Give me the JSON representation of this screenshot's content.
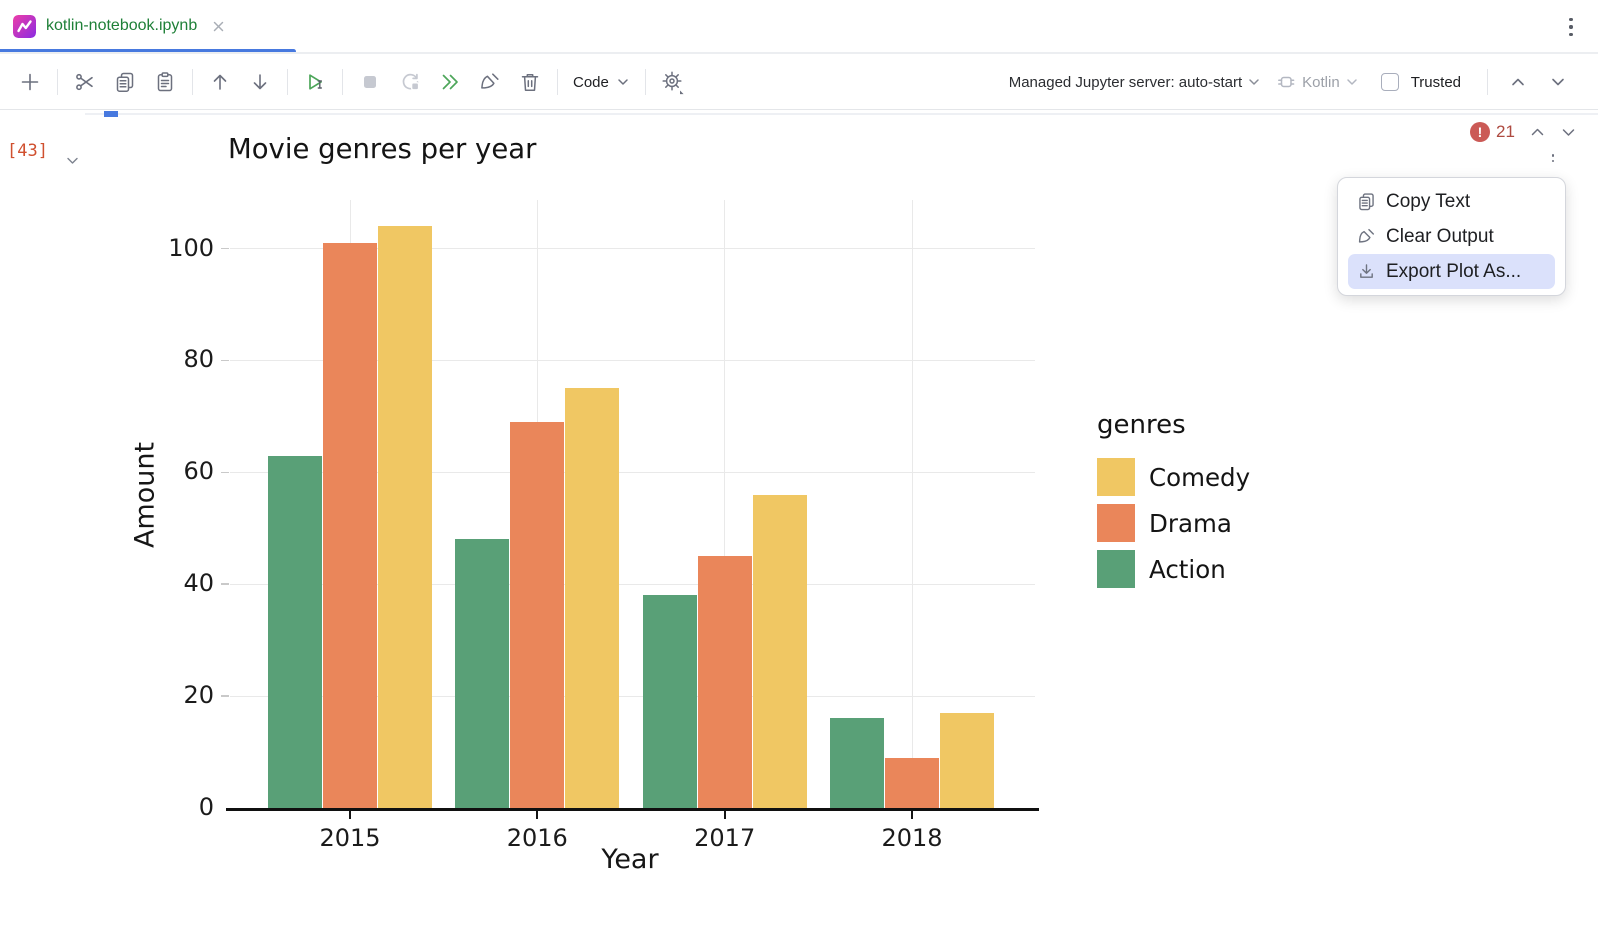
{
  "tab": {
    "title": "kotlin-notebook.ipynb"
  },
  "toolbar": {
    "code_label": "Code",
    "server_label": "Managed Jupyter server: auto-start",
    "kernel_label": "Kotlin",
    "trusted_label": "Trusted"
  },
  "cell": {
    "execution_count": "[43]"
  },
  "output_controls": {
    "error_count": "21"
  },
  "context_menu": {
    "items": [
      {
        "label": "Copy Text"
      },
      {
        "label": "Clear Output"
      },
      {
        "label": "Export Plot As..."
      }
    ],
    "highlight_color": "#dbe1fb"
  },
  "chart_data": {
    "type": "bar",
    "title": "Movie genres per year",
    "xlabel": "Year",
    "ylabel": "Amount",
    "legend_title": "genres",
    "legend_position": "right",
    "grid": true,
    "categories": [
      "2015",
      "2016",
      "2017",
      "2018"
    ],
    "series": [
      {
        "name": "Action",
        "color": "#59a077",
        "values": [
          63,
          48,
          38,
          16
        ]
      },
      {
        "name": "Drama",
        "color": "#ea865a",
        "values": [
          101,
          69,
          45,
          9
        ]
      },
      {
        "name": "Comedy",
        "color": "#f0c763",
        "values": [
          104,
          75,
          56,
          17
        ]
      }
    ],
    "legend_order": [
      "Comedy",
      "Drama",
      "Action"
    ],
    "ylim": [
      0,
      100
    ],
    "yticks": [
      0,
      20,
      40,
      60,
      80,
      100
    ]
  },
  "colors": {
    "accent_blue": "#4779df",
    "error_red": "#cb5a56",
    "tab_title_green": "#1f8038",
    "exec_count_orange": "#d0502f"
  }
}
